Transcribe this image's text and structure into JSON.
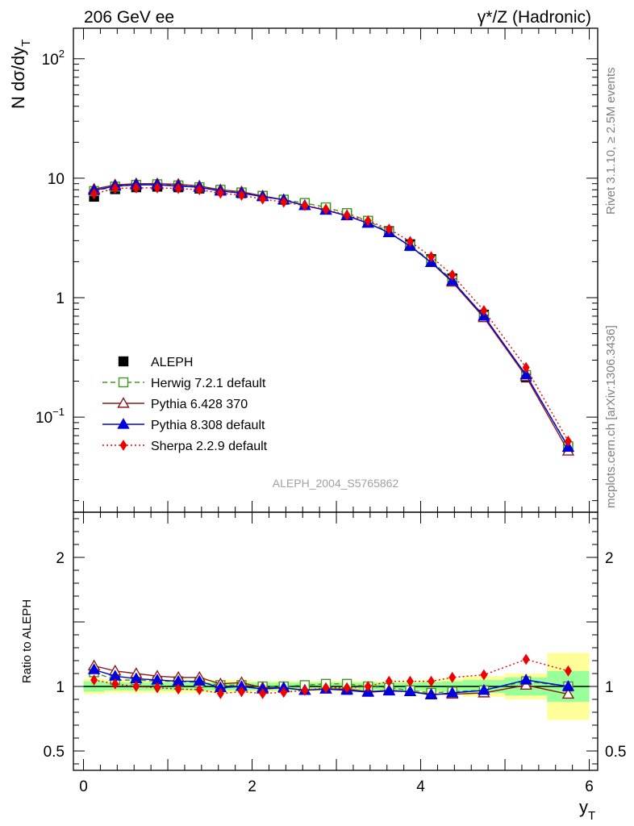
{
  "header": {
    "left_title": "206 GeV ee",
    "right_title": "γ*/Z (Hadronic)"
  },
  "side_labels": {
    "rivet": "Rivet 3.1.10, ≥ 2.5M events",
    "mcplots": "mcplots.cern.ch [arXiv:1306.3436]"
  },
  "analysis_id": "ALEPH_2004_S5765862",
  "colors": {
    "ALEPH": "#000000",
    "Herwig": "#3a9a1a",
    "Pythia6": "#8b1a1a",
    "Pythia8": "#0000dd",
    "Sherpa": "#ee0000",
    "band_yellow": "#ffff99",
    "band_green": "#99ff99"
  },
  "chart_data": [
    {
      "type": "line",
      "panel": "main",
      "ylabel": "N dσ/dy",
      "ylabel_sub": "T",
      "yscale": "log",
      "ylim": [
        0.016,
        180
      ],
      "xlim": [
        -0.12,
        6.1
      ],
      "y_ticks": [
        {
          "value": 0.1,
          "label": "10",
          "exp": "−1"
        },
        {
          "value": 1,
          "label": "1",
          "exp": ""
        },
        {
          "value": 10,
          "label": "10",
          "exp": ""
        },
        {
          "value": 100,
          "label": "10",
          "exp": "2"
        }
      ],
      "x": [
        0.125,
        0.375,
        0.625,
        0.875,
        1.125,
        1.375,
        1.625,
        1.875,
        2.125,
        2.375,
        2.625,
        2.875,
        3.125,
        3.375,
        3.625,
        3.875,
        4.125,
        4.375,
        4.75,
        5.25,
        5.75
      ],
      "series": [
        {
          "name": "ALEPH",
          "key": "ALEPH",
          "marker": "square",
          "values": [
            7.0,
            8.1,
            8.4,
            8.5,
            8.4,
            8.2,
            7.9,
            7.5,
            7.1,
            6.6,
            6.1,
            5.6,
            5.0,
            4.4,
            3.6,
            2.8,
            2.1,
            1.45,
            0.72,
            0.215,
            0.056
          ]
        },
        {
          "name": "Herwig 7.2.1 default",
          "key": "Herwig",
          "marker": "open-square",
          "dash": "6,4",
          "values": [
            7.8,
            8.5,
            8.8,
            8.9,
            8.7,
            8.4,
            8.0,
            7.6,
            7.1,
            6.6,
            6.2,
            5.7,
            5.1,
            4.4,
            3.55,
            2.7,
            2.05,
            1.4,
            0.7,
            0.225,
            0.057
          ]
        },
        {
          "name": "Pythia 6.428 370",
          "key": "Pythia6",
          "marker": "open-triangle",
          "values": [
            8.1,
            8.8,
            9.0,
            9.0,
            8.9,
            8.6,
            8.0,
            7.7,
            7.1,
            6.6,
            5.9,
            5.4,
            4.85,
            4.2,
            3.5,
            2.7,
            1.97,
            1.35,
            0.68,
            0.218,
            0.052
          ]
        },
        {
          "name": "Pythia 8.308 default",
          "key": "Pythia8",
          "marker": "triangle",
          "values": [
            7.9,
            8.6,
            8.8,
            8.8,
            8.6,
            8.4,
            7.8,
            7.5,
            7.0,
            6.6,
            5.9,
            5.4,
            4.85,
            4.2,
            3.5,
            2.7,
            1.97,
            1.38,
            0.7,
            0.226,
            0.056
          ]
        },
        {
          "name": "Sherpa 2.2.9 default",
          "key": "Sherpa",
          "marker": "diamond",
          "dash": "2,3",
          "values": [
            7.4,
            8.2,
            8.3,
            8.3,
            8.2,
            8.0,
            7.5,
            7.2,
            6.7,
            6.3,
            5.9,
            5.5,
            4.9,
            4.4,
            3.75,
            2.95,
            2.2,
            1.55,
            0.78,
            0.26,
            0.063
          ]
        }
      ]
    },
    {
      "type": "line",
      "panel": "ratio",
      "ylabel": "Ratio to ALEPH",
      "xlabel": "y",
      "xlabel_sub": "T",
      "ylim": [
        0.35,
        2.35
      ],
      "xlim": [
        -0.12,
        6.1
      ],
      "x_ticks": [
        0,
        2,
        4,
        6
      ],
      "y_ticks": [
        0.5,
        1,
        2
      ],
      "x": [
        0.125,
        0.375,
        0.625,
        0.875,
        1.125,
        1.375,
        1.625,
        1.875,
        2.125,
        2.375,
        2.625,
        2.875,
        3.125,
        3.375,
        3.625,
        3.875,
        4.125,
        4.375,
        4.75,
        5.25,
        5.75
      ],
      "bands": {
        "edges": [
          0,
          0.25,
          0.5,
          0.75,
          1.0,
          1.25,
          1.5,
          1.75,
          2.0,
          2.25,
          2.5,
          2.75,
          3.0,
          3.25,
          3.5,
          3.75,
          4.0,
          4.25,
          4.5,
          5.0,
          5.5,
          6.0
        ],
        "yellow": [
          0.06,
          0.05,
          0.05,
          0.05,
          0.05,
          0.05,
          0.05,
          0.05,
          0.04,
          0.04,
          0.04,
          0.04,
          0.04,
          0.04,
          0.04,
          0.04,
          0.05,
          0.06,
          0.08,
          0.1,
          0.26
        ],
        "green": [
          0.04,
          0.03,
          0.03,
          0.03,
          0.03,
          0.03,
          0.03,
          0.03,
          0.03,
          0.03,
          0.03,
          0.03,
          0.03,
          0.03,
          0.03,
          0.03,
          0.035,
          0.04,
          0.05,
          0.07,
          0.12
        ]
      },
      "series": [
        {
          "name": "Herwig 7.2.1 default",
          "key": "Herwig",
          "marker": "open-square",
          "dash": "6,4",
          "values": [
            1.11,
            1.05,
            1.05,
            1.04,
            1.04,
            1.03,
            1.01,
            1.01,
            1.0,
            1.0,
            1.01,
            1.02,
            1.02,
            1.0,
            0.99,
            0.97,
            0.95,
            0.96,
            0.97,
            1.04,
            1.0
          ]
        },
        {
          "name": "Pythia 6.428 370",
          "key": "Pythia6",
          "marker": "open-triangle",
          "values": [
            1.16,
            1.12,
            1.1,
            1.08,
            1.07,
            1.07,
            1.02,
            1.03,
            0.99,
            0.99,
            0.97,
            0.98,
            0.98,
            0.96,
            0.97,
            0.96,
            0.94,
            0.94,
            0.95,
            1.01,
            0.94
          ]
        },
        {
          "name": "Pythia 8.308 default",
          "key": "Pythia8",
          "marker": "triangle",
          "values": [
            1.13,
            1.08,
            1.06,
            1.05,
            1.04,
            1.04,
            0.99,
            1.0,
            0.98,
            0.99,
            0.97,
            0.98,
            0.97,
            0.955,
            0.965,
            0.96,
            0.935,
            0.95,
            0.97,
            1.05,
            1.0
          ]
        },
        {
          "name": "Sherpa 2.2.9 default",
          "key": "Sherpa",
          "marker": "diamond",
          "dash": "2,3",
          "values": [
            1.05,
            1.02,
            1.0,
            0.99,
            0.98,
            0.975,
            0.945,
            0.96,
            0.945,
            0.955,
            0.97,
            0.99,
            0.99,
            1.0,
            1.04,
            1.04,
            1.04,
            1.07,
            1.09,
            1.21,
            1.12
          ]
        }
      ]
    }
  ]
}
